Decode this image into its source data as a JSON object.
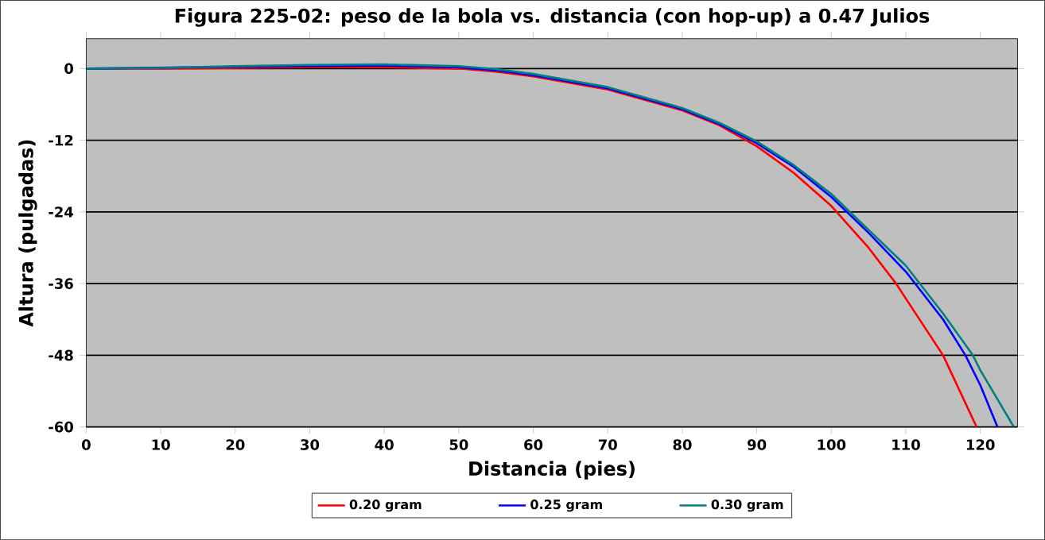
{
  "chart_data": {
    "type": "line",
    "title": "Figura 225-02: peso de la bola vs. distancia (con hop-up) a 0.47 Julios",
    "xlabel": "Distancia (pies)",
    "ylabel": "Altura (pulgadas)",
    "xlim": [
      0,
      125
    ],
    "ylim": [
      -60,
      5
    ],
    "xticks": [
      0,
      10,
      20,
      30,
      40,
      50,
      60,
      70,
      80,
      90,
      100,
      110,
      120
    ],
    "yticks": [
      -60,
      -48,
      -36,
      -24,
      -12,
      0
    ],
    "grid": "y",
    "legend": "bottom",
    "marker": "none",
    "line_style": "solid",
    "series": [
      {
        "name": "0.20 gram",
        "color": "#ff0000",
        "x": [
          0,
          10,
          20,
          30,
          40,
          50,
          55,
          60,
          70,
          80,
          85,
          90,
          95,
          100,
          105,
          108.7,
          110,
          115,
          119.5
        ],
        "values": [
          0,
          0,
          0.1,
          0.2,
          0.2,
          0,
          -0.5,
          -1.3,
          -3.5,
          -7,
          -9.5,
          -13,
          -17.5,
          -23,
          -30,
          -36,
          -38.5,
          -48,
          -60
        ]
      },
      {
        "name": "0.25 gram",
        "color": "#0000ff",
        "x": [
          0,
          10,
          20,
          30,
          40,
          50,
          55,
          60,
          70,
          80,
          85,
          90,
          95,
          100,
          105,
          110,
          115,
          118,
          120,
          122.3
        ],
        "values": [
          0,
          null,
          0.3,
          0.4,
          0.5,
          0.2,
          -0.3,
          -1.1,
          -3.3,
          -6.8,
          -9.3,
          -12.5,
          -16.5,
          -21.5,
          -27.5,
          -34,
          -42,
          -48,
          -53,
          -60
        ]
      },
      {
        "name": "0.30 gram",
        "color": "#008080",
        "x": [
          0,
          10,
          20,
          30,
          40,
          50,
          55,
          60,
          70,
          80,
          85,
          90,
          95,
          100,
          105,
          110,
          115,
          119,
          120,
          124.5
        ],
        "values": [
          0,
          0.1,
          0.4,
          0.6,
          0.7,
          0.4,
          -0.1,
          -0.9,
          -3.1,
          -6.6,
          -9.1,
          -12.2,
          -16.2,
          -21,
          -27,
          -33,
          -41,
          -48,
          -50.5,
          -60
        ]
      }
    ]
  }
}
